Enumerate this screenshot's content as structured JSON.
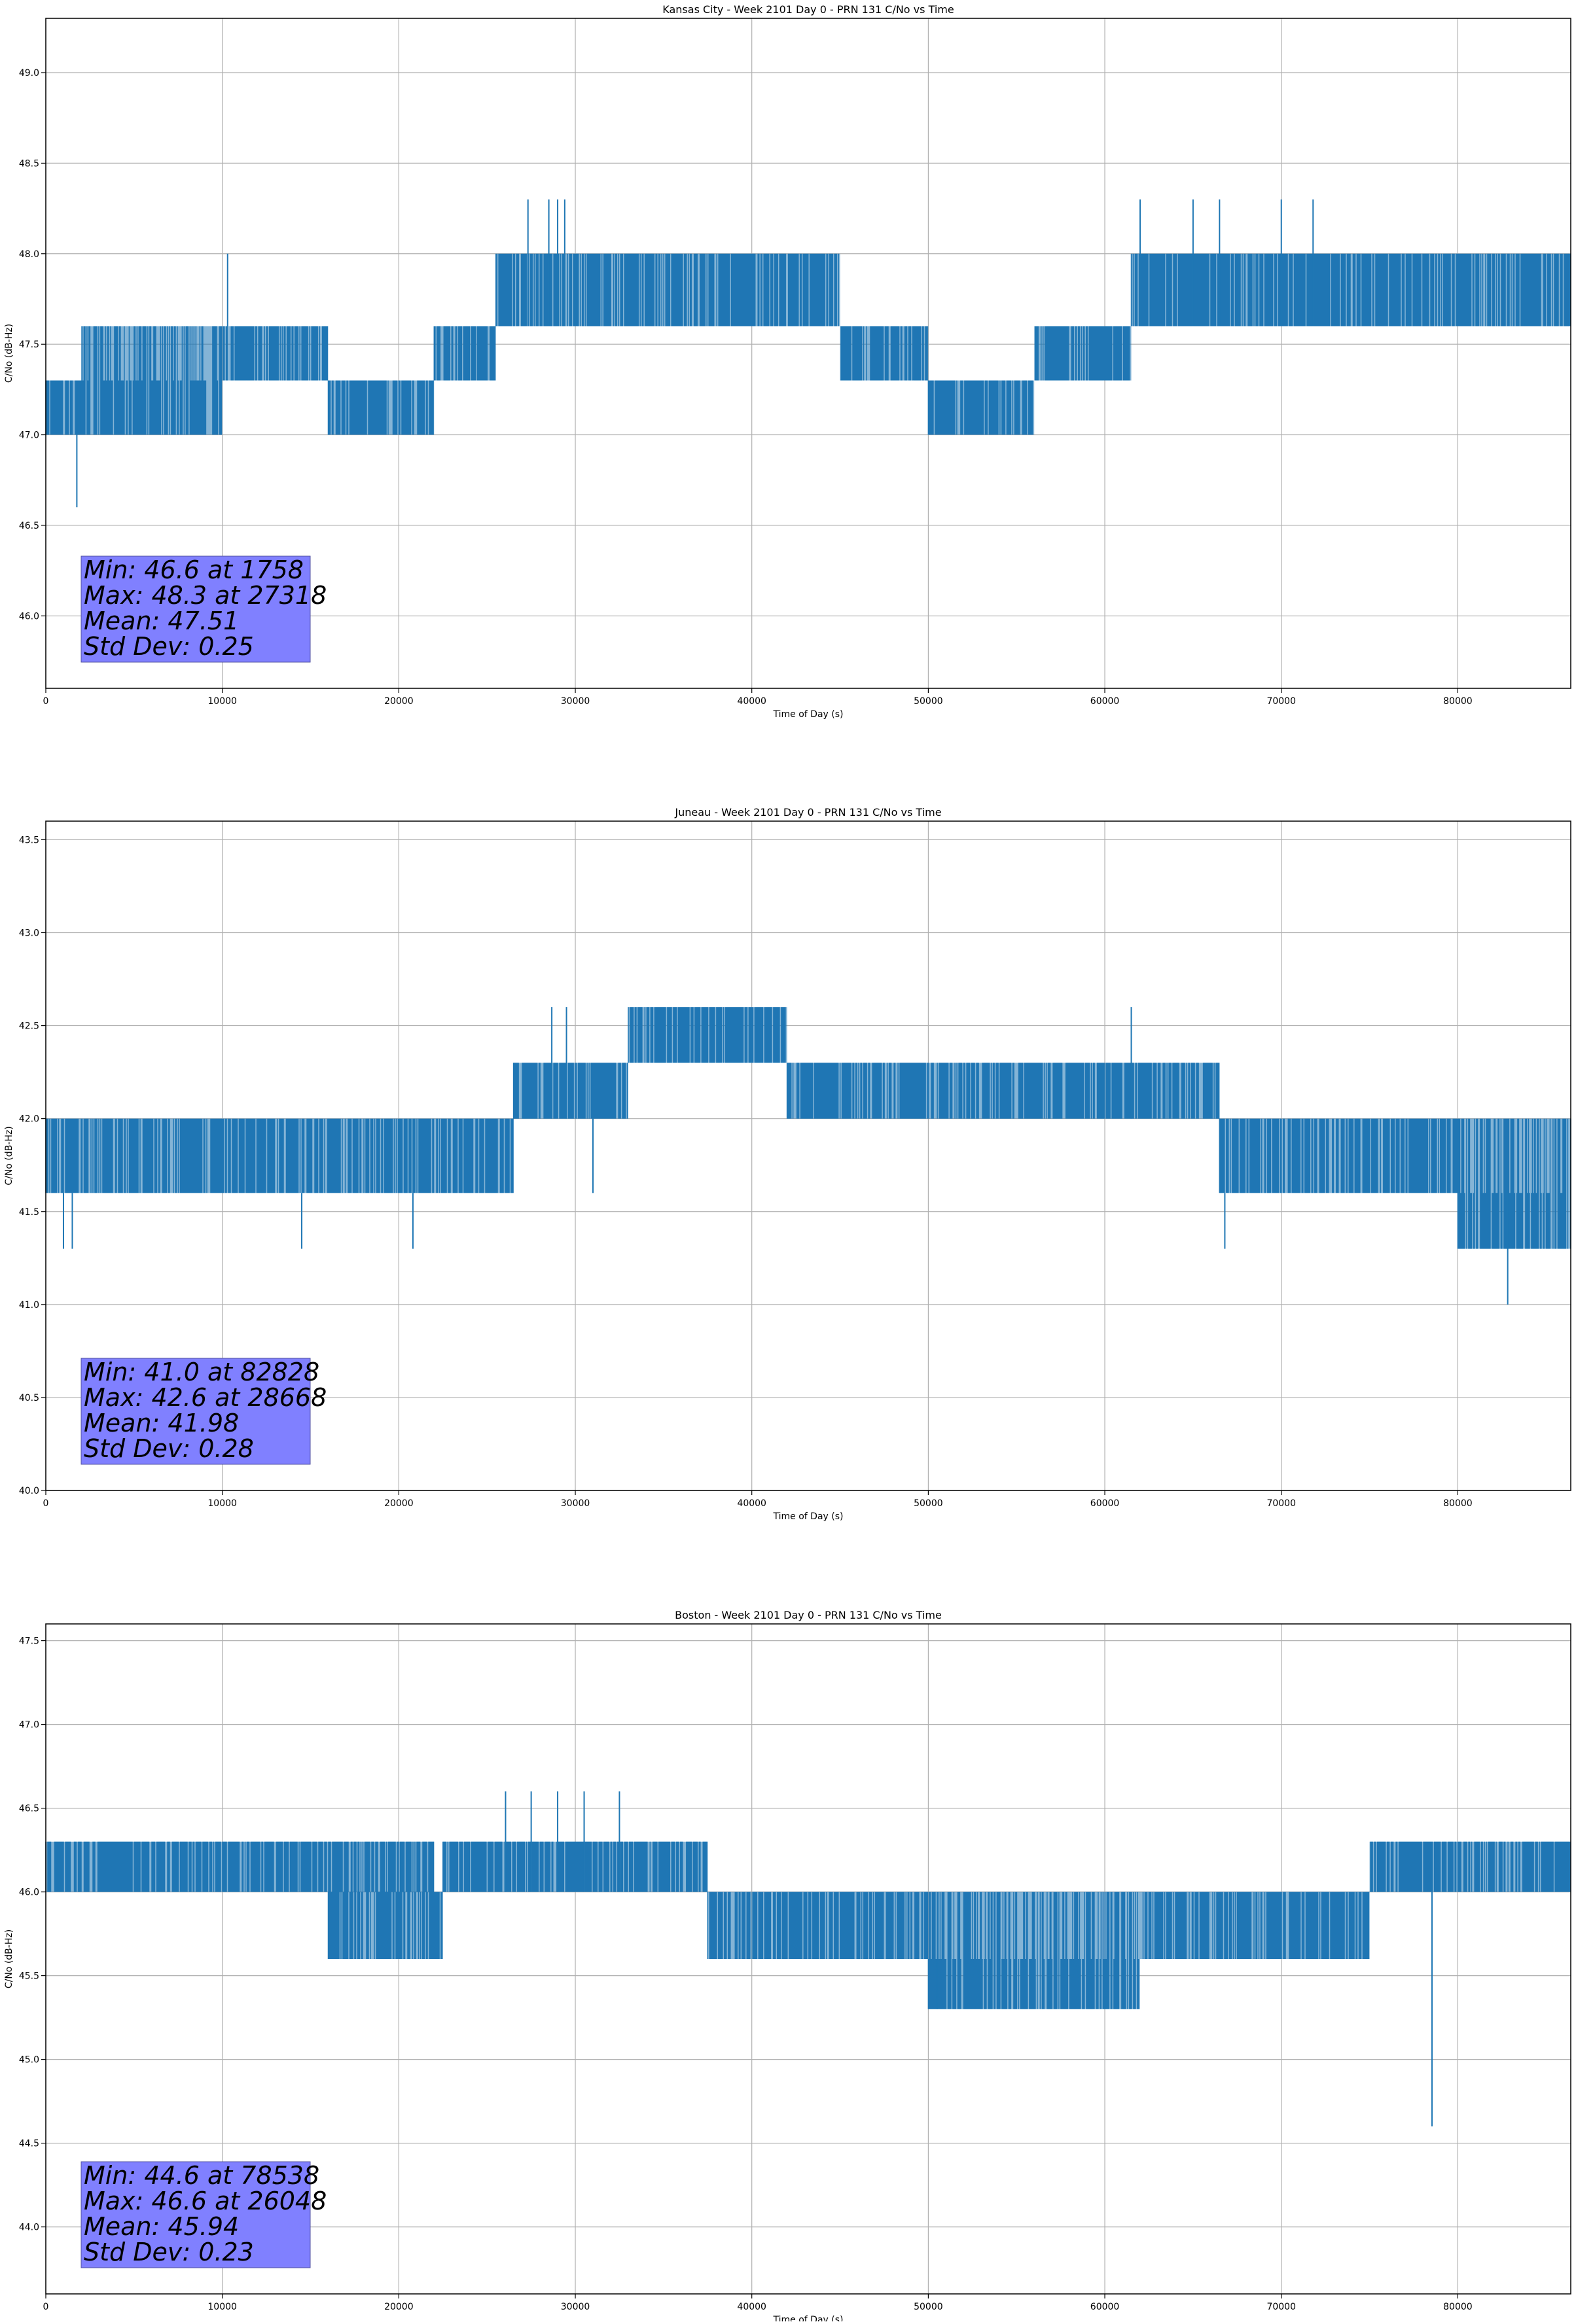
{
  "chart_data": [
    {
      "type": "line",
      "title": "Kansas City - Week 2101 Day 0 - PRN 131 C/No vs Time",
      "xlabel": "Time of Day (s)",
      "ylabel": "C/No (dB-Hz)",
      "xlim": [
        0,
        86400
      ],
      "ylim": [
        45.6,
        49.3
      ],
      "xticks": [
        0,
        10000,
        20000,
        30000,
        40000,
        50000,
        60000,
        70000,
        80000
      ],
      "yticks": [
        46.0,
        46.5,
        47.0,
        47.5,
        48.0,
        48.5,
        49.0
      ],
      "grid": true,
      "series": [
        {
          "color": "#1f77b4",
          "segments": [
            {
              "x": [
                0,
                2000
              ],
              "lo": 47.0,
              "hi": 47.3,
              "base": 47.3
            },
            {
              "x": [
                2000,
                10000
              ],
              "lo": 47.0,
              "hi": 47.6,
              "base": 47.3
            },
            {
              "x": [
                10000,
                16000
              ],
              "lo": 47.3,
              "hi": 47.6,
              "base": 47.6
            },
            {
              "x": [
                16000,
                22000
              ],
              "lo": 47.0,
              "hi": 47.3,
              "base": 47.3
            },
            {
              "x": [
                22000,
                25500
              ],
              "lo": 47.3,
              "hi": 47.6,
              "base": 47.6
            },
            {
              "x": [
                25500,
                45000
              ],
              "lo": 47.6,
              "hi": 48.0,
              "base": 47.6
            },
            {
              "x": [
                45000,
                50000
              ],
              "lo": 47.3,
              "hi": 47.6,
              "base": 47.6
            },
            {
              "x": [
                50000,
                56000
              ],
              "lo": 47.0,
              "hi": 47.3,
              "base": 47.3
            },
            {
              "x": [
                56000,
                61500
              ],
              "lo": 47.3,
              "hi": 47.6,
              "base": 47.6
            },
            {
              "x": [
                61500,
                86400
              ],
              "lo": 47.6,
              "hi": 48.0,
              "base": 47.6
            }
          ],
          "spikes": [
            {
              "x": 1758,
              "y": 46.6
            },
            {
              "x": 10300,
              "y": 48.0
            },
            {
              "x": 27318,
              "y": 48.3
            },
            {
              "x": 28500,
              "y": 48.3
            },
            {
              "x": 29000,
              "y": 48.3
            },
            {
              "x": 29400,
              "y": 48.3
            },
            {
              "x": 62000,
              "y": 48.3
            },
            {
              "x": 65000,
              "y": 48.3
            },
            {
              "x": 66500,
              "y": 48.3
            },
            {
              "x": 70000,
              "y": 48.3
            },
            {
              "x": 71800,
              "y": 48.3
            }
          ]
        }
      ],
      "annotation": {
        "lines": [
          "Min: 46.6 at 1758",
          "Max: 48.3 at 27318",
          "Mean: 47.51",
          "Std Dev: 0.25"
        ],
        "background": "#8080ff"
      }
    },
    {
      "type": "line",
      "title": "Juneau - Week 2101 Day 0 - PRN 131 C/No vs Time",
      "xlabel": "Time of Day (s)",
      "ylabel": "C/No (dB-Hz)",
      "xlim": [
        0,
        86400
      ],
      "ylim": [
        40.0,
        43.6
      ],
      "xticks": [
        0,
        10000,
        20000,
        30000,
        40000,
        50000,
        60000,
        70000,
        80000
      ],
      "yticks": [
        40.0,
        40.5,
        41.0,
        41.5,
        42.0,
        42.5,
        43.0,
        43.5
      ],
      "grid": true,
      "series": [
        {
          "color": "#1f77b4",
          "segments": [
            {
              "x": [
                0,
                26500
              ],
              "lo": 41.6,
              "hi": 42.0,
              "base": 41.6
            },
            {
              "x": [
                26500,
                33000
              ],
              "lo": 42.0,
              "hi": 42.3,
              "base": 42.0
            },
            {
              "x": [
                33000,
                42000
              ],
              "lo": 42.3,
              "hi": 42.6,
              "base": 42.3
            },
            {
              "x": [
                42000,
                66500
              ],
              "lo": 42.0,
              "hi": 42.3,
              "base": 42.0
            },
            {
              "x": [
                66500,
                80000
              ],
              "lo": 41.6,
              "hi": 42.0,
              "base": 41.6
            },
            {
              "x": [
                80000,
                86400
              ],
              "lo": 41.3,
              "hi": 42.0,
              "base": 41.6
            }
          ],
          "spikes": [
            {
              "x": 1000,
              "y": 41.3
            },
            {
              "x": 1500,
              "y": 41.3
            },
            {
              "x": 14500,
              "y": 41.3
            },
            {
              "x": 20800,
              "y": 41.3
            },
            {
              "x": 31000,
              "y": 41.6
            },
            {
              "x": 28668,
              "y": 42.6
            },
            {
              "x": 29500,
              "y": 42.6
            },
            {
              "x": 61500,
              "y": 42.6
            },
            {
              "x": 66800,
              "y": 41.3
            },
            {
              "x": 82828,
              "y": 41.0
            }
          ]
        }
      ],
      "annotation": {
        "lines": [
          "Min: 41.0 at 82828",
          "Max: 42.6 at 28668",
          "Mean: 41.98",
          "Std Dev: 0.28"
        ],
        "background": "#8080ff"
      }
    },
    {
      "type": "line",
      "title": "Boston - Week 2101 Day 0 - PRN 131 C/No vs Time",
      "xlabel": "Time of Day (s)",
      "ylabel": "C/No (dB-Hz)",
      "xlim": [
        0,
        86400
      ],
      "ylim": [
        43.6,
        47.6
      ],
      "xticks": [
        0,
        10000,
        20000,
        30000,
        40000,
        50000,
        60000,
        70000,
        80000
      ],
      "yticks": [
        44.0,
        44.5,
        45.0,
        45.5,
        46.0,
        46.5,
        47.0,
        47.5
      ],
      "grid": true,
      "series": [
        {
          "color": "#1f77b4",
          "segments": [
            {
              "x": [
                0,
                22000
              ],
              "lo": 46.0,
              "hi": 46.3,
              "base": 46.0
            },
            {
              "x": [
                16000,
                22500
              ],
              "lo": 45.6,
              "hi": 46.0,
              "base": 45.6
            },
            {
              "x": [
                22500,
                37500
              ],
              "lo": 46.0,
              "hi": 46.3,
              "base": 46.0
            },
            {
              "x": [
                37500,
                50000
              ],
              "lo": 45.6,
              "hi": 46.0,
              "base": 46.0
            },
            {
              "x": [
                50000,
                62000
              ],
              "lo": 45.3,
              "hi": 46.0,
              "base": 45.6
            },
            {
              "x": [
                62000,
                75000
              ],
              "lo": 45.6,
              "hi": 46.0,
              "base": 45.6
            },
            {
              "x": [
                75000,
                86400
              ],
              "lo": 46.0,
              "hi": 46.3,
              "base": 46.0
            }
          ],
          "spikes": [
            {
              "x": 26048,
              "y": 46.6
            },
            {
              "x": 27500,
              "y": 46.6
            },
            {
              "x": 29000,
              "y": 46.6
            },
            {
              "x": 30500,
              "y": 46.6
            },
            {
              "x": 32500,
              "y": 46.6
            },
            {
              "x": 50500,
              "y": 45.3
            },
            {
              "x": 78538,
              "y": 44.6
            }
          ]
        }
      ],
      "annotation": {
        "lines": [
          "Min: 44.6 at 78538",
          "Max: 46.6 at 26048",
          "Mean: 45.94",
          "Std Dev: 0.23"
        ],
        "background": "#8080ff"
      }
    }
  ]
}
